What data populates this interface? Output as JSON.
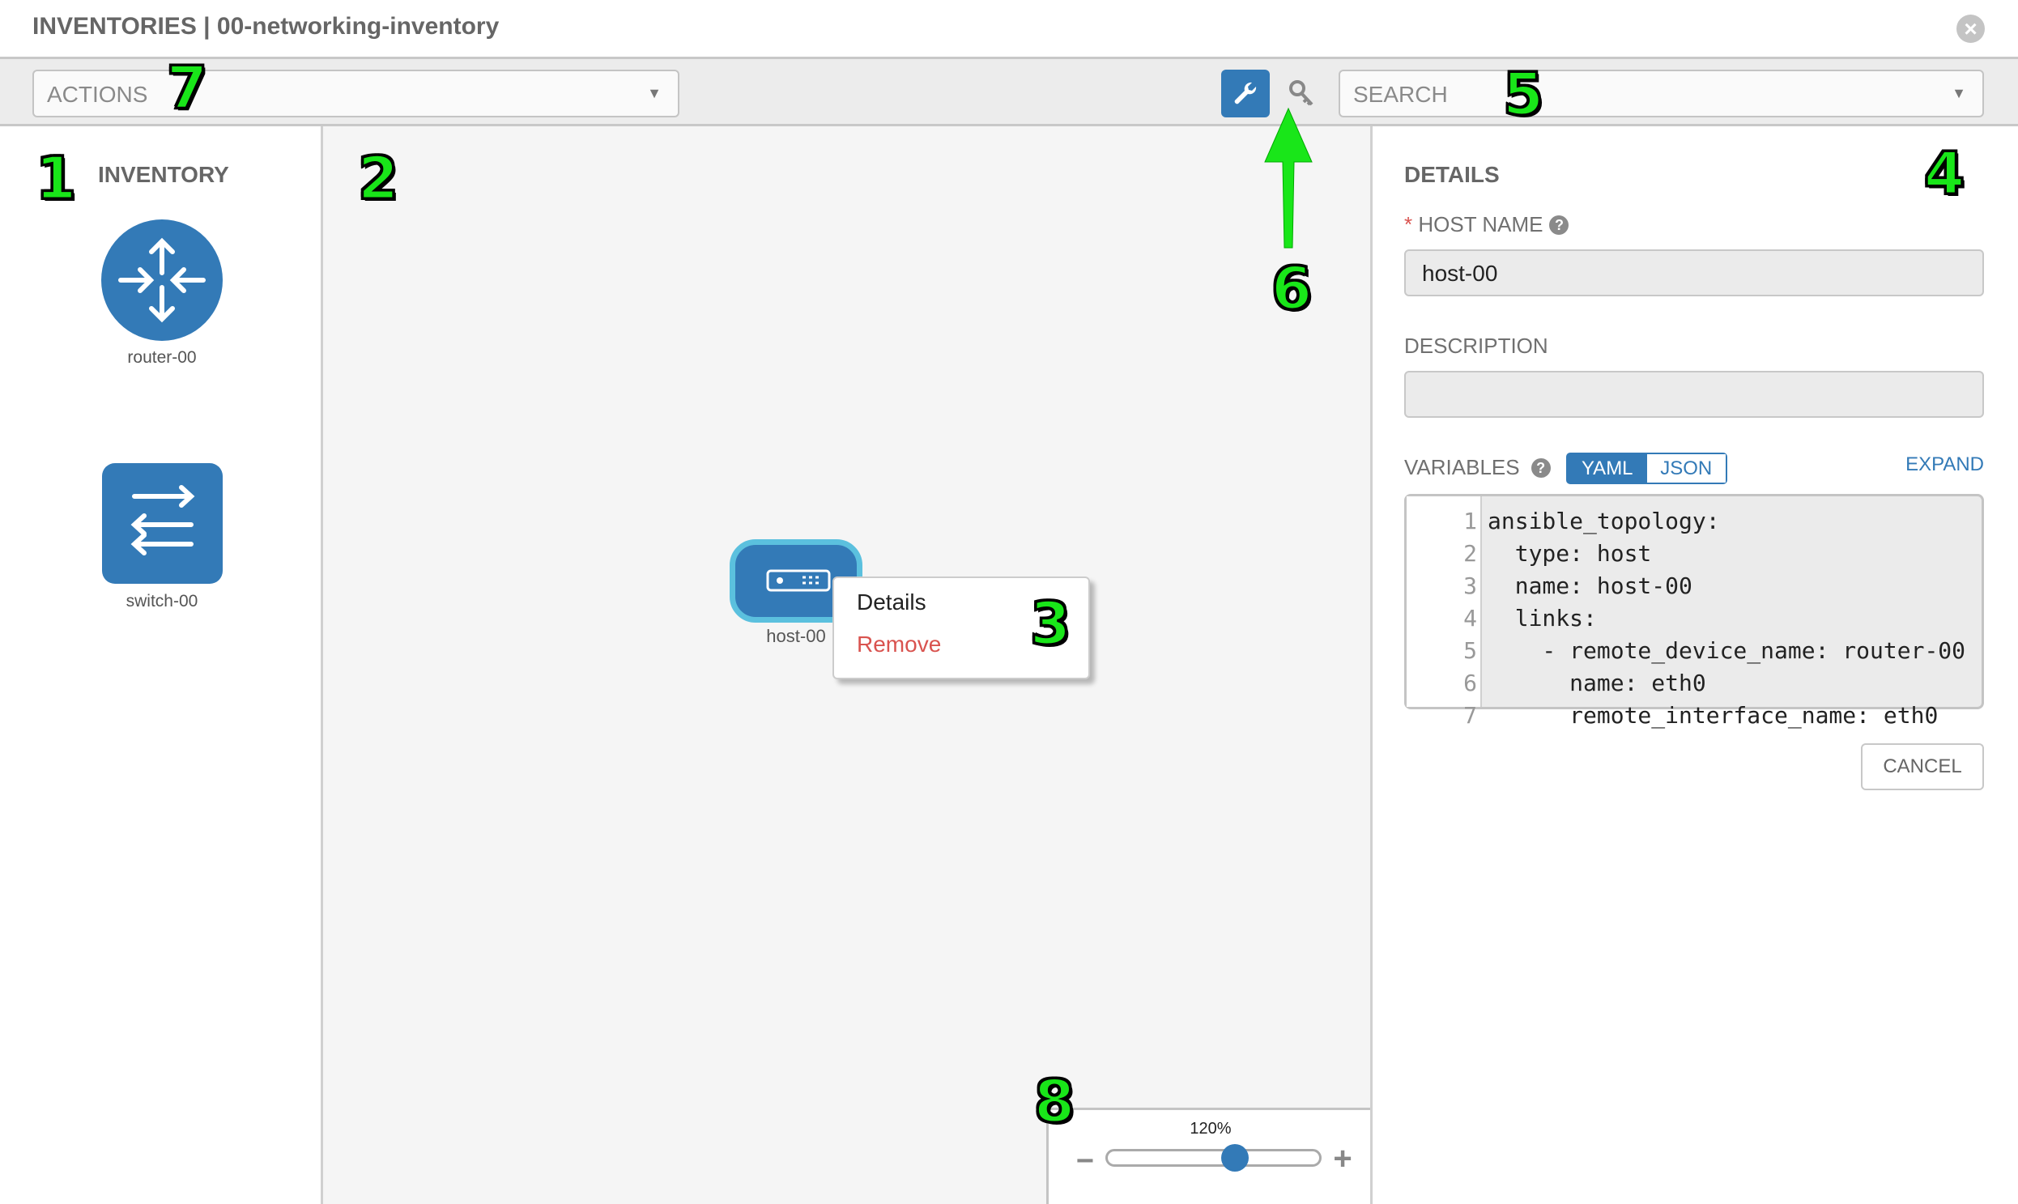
{
  "header": {
    "title": "INVENTORIES | 00-networking-inventory",
    "close_icon": "close-circle-icon"
  },
  "toolbar": {
    "actions_placeholder": "ACTIONS",
    "search_placeholder": "SEARCH",
    "wrench_icon": "wrench-icon",
    "key_icon": "key-icon",
    "active_color": "#337ab7"
  },
  "inventory": {
    "title": "INVENTORY",
    "items": [
      {
        "label": "router-00",
        "icon": "router-icon"
      },
      {
        "label": "switch-00",
        "icon": "switch-icon"
      }
    ]
  },
  "canvas": {
    "node": {
      "label": "host-00",
      "icon": "host-icon"
    },
    "context_menu": {
      "details": "Details",
      "remove": "Remove"
    }
  },
  "details": {
    "title": "DETAILS",
    "host_name_label": "HOST NAME",
    "required_mark": "*",
    "host_name_value": "host-00",
    "description_label": "DESCRIPTION",
    "description_value": "",
    "variables_label": "VARIABLES",
    "yaml": "YAML",
    "json": "JSON",
    "expand": "EXPAND",
    "cancel": "CANCEL",
    "code_lines": [
      {
        "n": "1",
        "text": "ansible_topology:"
      },
      {
        "n": "2",
        "text": "  type: host"
      },
      {
        "n": "3",
        "text": "  name: host-00"
      },
      {
        "n": "4",
        "text": "  links:"
      },
      {
        "n": "5",
        "text": "    - remote_device_name: router-00"
      },
      {
        "n": "6",
        "text": "      name: eth0"
      },
      {
        "n": "7",
        "text": "      remote_interface_name: eth0"
      }
    ]
  },
  "zoom": {
    "label": "120%",
    "slider_fraction": 0.6,
    "minus": "−",
    "plus": "+"
  },
  "annotations": [
    "1",
    "2",
    "3",
    "4",
    "5",
    "6",
    "7",
    "8"
  ]
}
